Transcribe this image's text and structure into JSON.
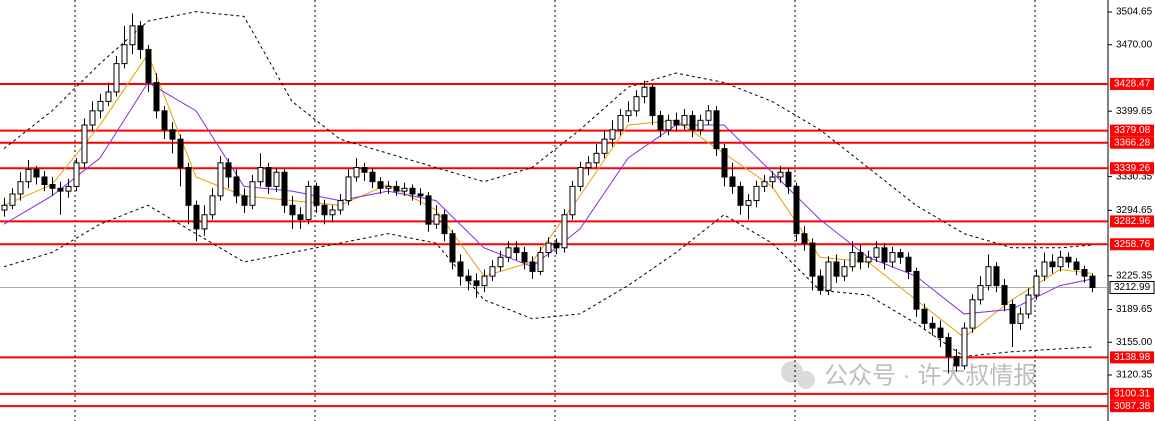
{
  "chart_data": {
    "type": "candlestick",
    "ylim": [
      3071.65,
      3517.35
    ],
    "yticks": [
      3504.65,
      {
        "value": 3470,
        "label": "3470.00"
      },
      3399.65,
      3330.35,
      3294.65,
      3225.35,
      3189.65,
      {
        "value": 3155,
        "label": "3155.00"
      },
      3120.35
    ],
    "up_color": "#ffffff",
    "down_color": "#000000",
    "ohlc": [
      [
        3295,
        3308,
        3288,
        3300
      ],
      [
        3300,
        3318,
        3296,
        3312
      ],
      [
        3312,
        3335,
        3305,
        3325
      ],
      [
        3325,
        3348,
        3318,
        3338
      ],
      [
        3338,
        3342,
        3322,
        3330
      ],
      [
        3330,
        3336,
        3315,
        3322
      ],
      [
        3322,
        3330,
        3310,
        3318
      ],
      [
        3318,
        3325,
        3290,
        3315
      ],
      [
        3315,
        3328,
        3308,
        3320
      ],
      [
        3320,
        3350,
        3315,
        3345
      ],
      [
        3345,
        3392,
        3340,
        3385
      ],
      [
        3385,
        3410,
        3378,
        3400
      ],
      [
        3400,
        3418,
        3392,
        3410
      ],
      [
        3410,
        3430,
        3405,
        3420
      ],
      [
        3420,
        3458,
        3415,
        3450
      ],
      [
        3450,
        3490,
        3445,
        3470
      ],
      [
        3470,
        3503,
        3460,
        3490
      ],
      [
        3490,
        3495,
        3455,
        3465
      ],
      [
        3465,
        3470,
        3420,
        3430
      ],
      [
        3430,
        3440,
        3392,
        3400
      ],
      [
        3400,
        3405,
        3370,
        3380
      ],
      [
        3380,
        3388,
        3355,
        3370
      ],
      [
        3370,
        3375,
        3320,
        3340
      ],
      [
        3340,
        3345,
        3280,
        3300
      ],
      [
        3300,
        3305,
        3262,
        3275
      ],
      [
        3275,
        3300,
        3268,
        3290
      ],
      [
        3290,
        3318,
        3285,
        3310
      ],
      [
        3310,
        3352,
        3305,
        3345
      ],
      [
        3345,
        3350,
        3318,
        3330
      ],
      [
        3330,
        3338,
        3302,
        3310
      ],
      [
        3310,
        3318,
        3292,
        3300
      ],
      [
        3300,
        3332,
        3296,
        3325
      ],
      [
        3325,
        3355,
        3320,
        3340
      ],
      [
        3340,
        3345,
        3312,
        3320
      ],
      [
        3320,
        3340,
        3314,
        3335
      ],
      [
        3335,
        3338,
        3292,
        3300
      ],
      [
        3300,
        3310,
        3275,
        3290
      ],
      [
        3290,
        3298,
        3275,
        3285
      ],
      [
        3285,
        3326,
        3280,
        3320
      ],
      [
        3320,
        3324,
        3292,
        3300
      ],
      [
        3300,
        3306,
        3280,
        3290
      ],
      [
        3290,
        3300,
        3282,
        3295
      ],
      [
        3295,
        3312,
        3290,
        3305
      ],
      [
        3305,
        3338,
        3300,
        3330
      ],
      [
        3330,
        3350,
        3325,
        3340
      ],
      [
        3340,
        3345,
        3326,
        3335
      ],
      [
        3335,
        3340,
        3318,
        3325
      ],
      [
        3325,
        3330,
        3312,
        3318
      ],
      [
        3318,
        3326,
        3312,
        3320
      ],
      [
        3320,
        3326,
        3310,
        3315
      ],
      [
        3315,
        3324,
        3310,
        3318
      ],
      [
        3318,
        3322,
        3305,
        3312
      ],
      [
        3312,
        3318,
        3300,
        3310
      ],
      [
        3310,
        3314,
        3272,
        3280
      ],
      [
        3280,
        3300,
        3275,
        3290
      ],
      [
        3290,
        3295,
        3262,
        3270
      ],
      [
        3270,
        3274,
        3232,
        3240
      ],
      [
        3240,
        3248,
        3215,
        3225
      ],
      [
        3225,
        3232,
        3210,
        3220
      ],
      [
        3220,
        3228,
        3202,
        3215
      ],
      [
        3215,
        3232,
        3208,
        3225
      ],
      [
        3225,
        3242,
        3220,
        3235
      ],
      [
        3235,
        3252,
        3230,
        3245
      ],
      [
        3245,
        3262,
        3240,
        3255
      ],
      [
        3255,
        3262,
        3242,
        3250
      ],
      [
        3250,
        3256,
        3232,
        3240
      ],
      [
        3240,
        3246,
        3222,
        3230
      ],
      [
        3230,
        3256,
        3226,
        3250
      ],
      [
        3250,
        3266,
        3245,
        3260
      ],
      [
        3260,
        3265,
        3248,
        3255
      ],
      [
        3255,
        3296,
        3250,
        3290
      ],
      [
        3290,
        3326,
        3285,
        3320
      ],
      [
        3320,
        3346,
        3315,
        3340
      ],
      [
        3340,
        3352,
        3332,
        3345
      ],
      [
        3345,
        3365,
        3340,
        3355
      ],
      [
        3355,
        3380,
        3350,
        3370
      ],
      [
        3370,
        3390,
        3362,
        3380
      ],
      [
        3380,
        3402,
        3374,
        3395
      ],
      [
        3395,
        3410,
        3388,
        3400
      ],
      [
        3400,
        3422,
        3394,
        3415
      ],
      [
        3415,
        3432,
        3408,
        3425
      ],
      [
        3425,
        3428,
        3385,
        3395
      ],
      [
        3395,
        3400,
        3372,
        3380
      ],
      [
        3380,
        3396,
        3374,
        3390
      ],
      [
        3390,
        3398,
        3378,
        3385
      ],
      [
        3385,
        3402,
        3380,
        3395
      ],
      [
        3395,
        3400,
        3372,
        3380
      ],
      [
        3380,
        3396,
        3374,
        3390
      ],
      [
        3390,
        3406,
        3385,
        3400
      ],
      [
        3400,
        3405,
        3352,
        3360
      ],
      [
        3360,
        3365,
        3320,
        3330
      ],
      [
        3330,
        3345,
        3312,
        3320
      ],
      [
        3320,
        3325,
        3290,
        3300
      ],
      [
        3300,
        3312,
        3285,
        3305
      ],
      [
        3305,
        3326,
        3298,
        3320
      ],
      [
        3320,
        3332,
        3314,
        3325
      ],
      [
        3325,
        3336,
        3318,
        3330
      ],
      [
        3330,
        3342,
        3324,
        3335
      ],
      [
        3335,
        3340,
        3312,
        3320
      ],
      [
        3320,
        3324,
        3262,
        3270
      ],
      [
        3270,
        3278,
        3252,
        3260
      ],
      [
        3260,
        3265,
        3210,
        3225
      ],
      [
        3225,
        3232,
        3205,
        3210
      ],
      [
        3210,
        3246,
        3205,
        3240
      ],
      [
        3240,
        3248,
        3218,
        3225
      ],
      [
        3225,
        3242,
        3220,
        3235
      ],
      [
        3235,
        3262,
        3230,
        3250
      ],
      [
        3250,
        3258,
        3232,
        3240
      ],
      [
        3240,
        3252,
        3234,
        3245
      ],
      [
        3245,
        3262,
        3240,
        3255
      ],
      [
        3255,
        3260,
        3232,
        3240
      ],
      [
        3240,
        3256,
        3234,
        3250
      ],
      [
        3250,
        3254,
        3238,
        3245
      ],
      [
        3245,
        3250,
        3222,
        3230
      ],
      [
        3230,
        3234,
        3182,
        3190
      ],
      [
        3190,
        3196,
        3168,
        3175
      ],
      [
        3175,
        3182,
        3162,
        3170
      ],
      [
        3170,
        3178,
        3150,
        3160
      ],
      [
        3160,
        3165,
        3122,
        3140
      ],
      [
        3140,
        3148,
        3124,
        3130
      ],
      [
        3130,
        3176,
        3126,
        3170
      ],
      [
        3170,
        3206,
        3165,
        3200
      ],
      [
        3200,
        3225,
        3195,
        3215
      ],
      [
        3215,
        3248,
        3210,
        3235
      ],
      [
        3235,
        3240,
        3208,
        3215
      ],
      [
        3215,
        3222,
        3188,
        3195
      ],
      [
        3195,
        3200,
        3150,
        3175
      ],
      [
        3175,
        3192,
        3168,
        3185
      ],
      [
        3185,
        3212,
        3180,
        3205
      ],
      [
        3205,
        3232,
        3200,
        3225
      ],
      [
        3225,
        3250,
        3220,
        3240
      ],
      [
        3240,
        3248,
        3228,
        3235
      ],
      [
        3235,
        3252,
        3230,
        3245
      ],
      [
        3245,
        3250,
        3234,
        3240
      ],
      [
        3240,
        3244,
        3226,
        3232
      ],
      [
        3232,
        3236,
        3218,
        3225
      ],
      [
        3225,
        3228,
        3208,
        3213
      ]
    ],
    "lines": [
      {
        "color": "#e8a000",
        "dash": false,
        "x": [
          0,
          6,
          12,
          18,
          24,
          30,
          36,
          42,
          48,
          54,
          60,
          66,
          72,
          78,
          84,
          90,
          96,
          102,
          108,
          114,
          120,
          126,
          132,
          136
        ],
        "values": [
          3300,
          3322,
          3385,
          3460,
          3330,
          3310,
          3305,
          3300,
          3322,
          3295,
          3225,
          3240,
          3310,
          3385,
          3390,
          3355,
          3320,
          3245,
          3240,
          3200,
          3160,
          3200,
          3232,
          3228
        ]
      },
      {
        "color": "#8a2be2",
        "dash": false,
        "x": [
          0,
          6,
          12,
          18,
          24,
          30,
          36,
          42,
          48,
          54,
          60,
          66,
          72,
          78,
          84,
          90,
          96,
          102,
          108,
          114,
          120,
          126,
          132,
          136
        ],
        "values": [
          3280,
          3310,
          3350,
          3430,
          3400,
          3320,
          3315,
          3305,
          3315,
          3305,
          3255,
          3235,
          3275,
          3350,
          3385,
          3385,
          3335,
          3285,
          3245,
          3225,
          3185,
          3190,
          3215,
          3222
        ]
      },
      {
        "color": "#000000",
        "dash": true,
        "x": [
          0,
          6,
          12,
          18,
          24,
          30,
          36,
          42,
          48,
          54,
          60,
          66,
          72,
          78,
          84,
          90,
          96,
          102,
          108,
          114,
          120,
          126,
          132,
          136
        ],
        "values": [
          3360,
          3400,
          3450,
          3495,
          3505,
          3500,
          3410,
          3370,
          3355,
          3340,
          3325,
          3340,
          3380,
          3425,
          3440,
          3430,
          3410,
          3380,
          3340,
          3300,
          3270,
          3255,
          3255,
          3258
        ]
      },
      {
        "color": "#000000",
        "dash": true,
        "x": [
          0,
          6,
          12,
          18,
          24,
          30,
          36,
          42,
          48,
          54,
          60,
          66,
          72,
          78,
          84,
          90,
          96,
          102,
          108,
          114,
          120,
          126,
          132,
          136
        ],
        "values": [
          3235,
          3250,
          3280,
          3300,
          3270,
          3240,
          3250,
          3260,
          3270,
          3260,
          3200,
          3180,
          3185,
          3215,
          3250,
          3290,
          3260,
          3210,
          3205,
          3175,
          3140,
          3145,
          3148,
          3150
        ]
      }
    ],
    "levels": [
      3428.47,
      3379.08,
      3366.28,
      3339.26,
      3282.96,
      3258.76,
      3138.98,
      3100.31,
      3087.38
    ],
    "level_color": "#ff0000",
    "last": 3212.99,
    "watermark": "公众号 · 许大叔情报"
  }
}
